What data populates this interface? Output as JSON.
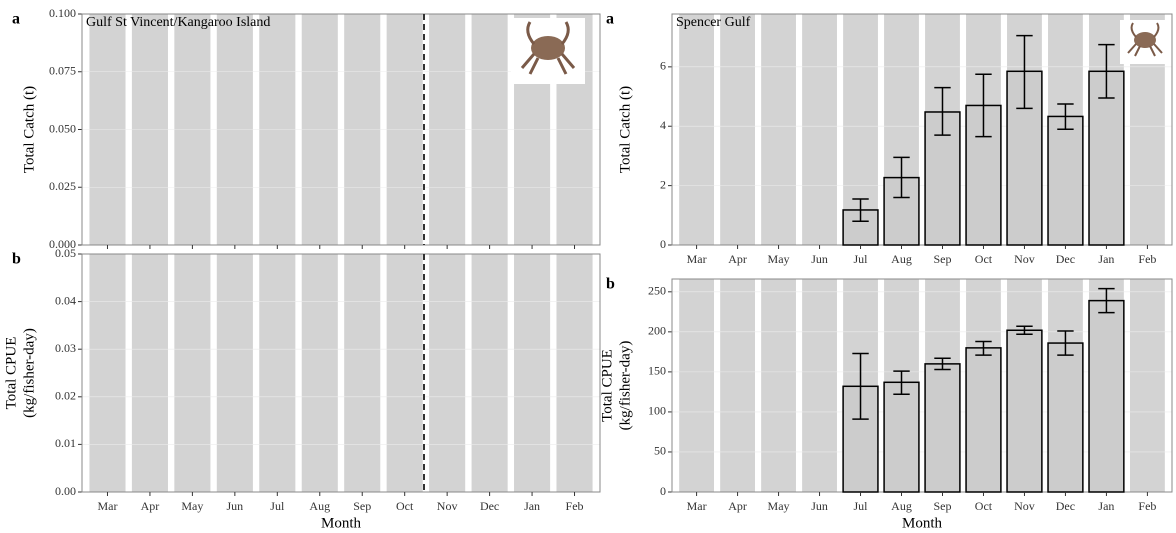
{
  "chart_data": [
    {
      "type": "bar",
      "panel_label": "a",
      "title": "Gulf St Vincent/Kangaroo Island",
      "ylabel": [
        "Total Catch (t)"
      ],
      "categories": [
        "Mar",
        "Apr",
        "May",
        "Jun",
        "Jul",
        "Aug",
        "Sep",
        "Oct",
        "Nov",
        "Dec",
        "Jan",
        "Feb"
      ],
      "values": [
        null,
        null,
        null,
        null,
        null,
        null,
        null,
        null,
        null,
        null,
        null,
        null
      ],
      "color": "#cccccc",
      "ylim": [
        0,
        0.1
      ],
      "yticks": [
        {
          "value": 0,
          "label": "0.000"
        },
        {
          "value": 0.025,
          "label": "0.025"
        },
        {
          "value": 0.05,
          "label": "0.050"
        },
        {
          "value": 0.075,
          "label": "0.075"
        },
        {
          "value": 0.1,
          "label": "0.100"
        }
      ]
    },
    {
      "type": "bar",
      "panel_label": "b",
      "ylabel": [
        "Total CPUE",
        "(kg/fisher-day)"
      ],
      "xlabel": "Month",
      "categories": [
        "Mar",
        "Apr",
        "May",
        "Jun",
        "Jul",
        "Aug",
        "Sep",
        "Oct",
        "Nov",
        "Dec",
        "Jan",
        "Feb"
      ],
      "values": [
        null,
        null,
        null,
        null,
        null,
        null,
        null,
        null,
        null,
        null,
        null,
        null
      ],
      "color": "#cccccc",
      "ylim": [
        0,
        0.05
      ],
      "yticks": [
        {
          "value": 0,
          "label": "0.00"
        },
        {
          "value": 0.01,
          "label": "0.01"
        },
        {
          "value": 0.02,
          "label": "0.02"
        },
        {
          "value": 0.03,
          "label": "0.03"
        },
        {
          "value": 0.04,
          "label": "0.04"
        },
        {
          "value": 0.05,
          "label": "0.05"
        }
      ]
    },
    {
      "type": "bar",
      "panel_label": "a",
      "title": "Spencer Gulf",
      "ylabel": [
        "Total Catch (t)"
      ],
      "categories": [
        "Mar",
        "Apr",
        "May",
        "Jun",
        "Jul",
        "Aug",
        "Sep",
        "Oct",
        "Nov",
        "Dec",
        "Jan",
        "Feb"
      ],
      "values": [
        null,
        null,
        null,
        null,
        1.18,
        2.27,
        4.48,
        4.7,
        5.85,
        4.33,
        5.85,
        null
      ],
      "error_low": [
        null,
        null,
        null,
        null,
        0.8,
        1.6,
        3.7,
        3.65,
        4.6,
        3.9,
        4.95,
        null
      ],
      "error_high": [
        null,
        null,
        null,
        null,
        1.55,
        2.95,
        5.3,
        5.75,
        7.05,
        4.75,
        6.75,
        null
      ],
      "color": "#cccccc",
      "ylim": [
        0,
        7.78
      ],
      "yticks": [
        0,
        2,
        4,
        6
      ]
    },
    {
      "type": "bar",
      "panel_label": "b",
      "ylabel": [
        "Total CPUE",
        "(kg/fisher-day)"
      ],
      "xlabel": "Month",
      "categories": [
        "Mar",
        "Apr",
        "May",
        "Jun",
        "Jul",
        "Aug",
        "Sep",
        "Oct",
        "Nov",
        "Dec",
        "Jan",
        "Feb"
      ],
      "values": [
        null,
        null,
        null,
        null,
        132,
        137,
        160,
        180,
        202,
        186,
        239,
        null
      ],
      "error_low": [
        null,
        null,
        null,
        null,
        91,
        122,
        153,
        171,
        197,
        171,
        224,
        null
      ],
      "error_high": [
        null,
        null,
        null,
        null,
        173,
        151,
        167,
        188,
        207,
        201,
        254,
        null
      ],
      "color": "#cccccc",
      "ylim": [
        0,
        266
      ],
      "yticks": [
        0,
        50,
        100,
        150,
        200,
        250
      ]
    }
  ]
}
